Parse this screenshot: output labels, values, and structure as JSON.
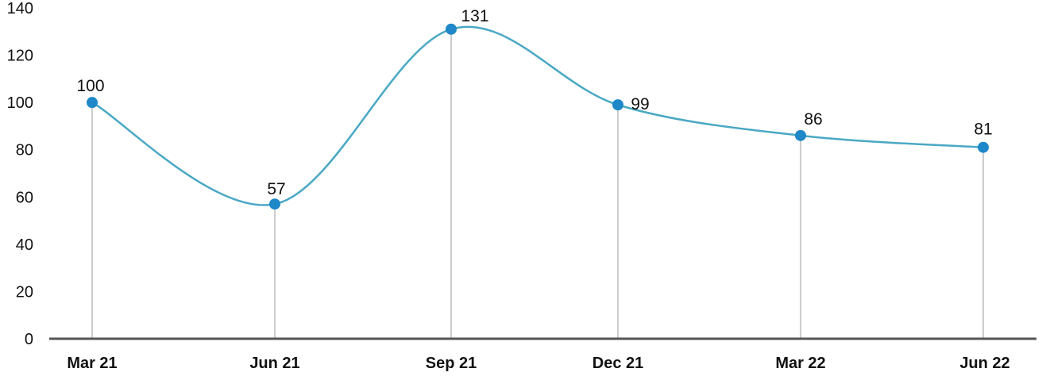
{
  "chart_data": {
    "type": "line",
    "categories": [
      "Mar 21",
      "Jun 21",
      "Sep 21",
      "Dec 21",
      "Mar 22",
      "Jun 22"
    ],
    "series": [
      {
        "values": [
          100,
          57,
          131,
          99,
          86,
          81
        ]
      }
    ],
    "data_labels": [
      "100",
      "57",
      "131",
      "99",
      "86",
      "81"
    ],
    "ylim": [
      0,
      140
    ],
    "yticks": [
      0,
      20,
      40,
      60,
      80,
      100,
      120,
      140
    ],
    "smooth": true,
    "drop_lines": true,
    "grid": false,
    "legend": "none",
    "colors": {
      "line": "#4aa8c4",
      "marker": "#1e88c8",
      "drop_line": "#cccccc",
      "axis": "#555555"
    }
  }
}
